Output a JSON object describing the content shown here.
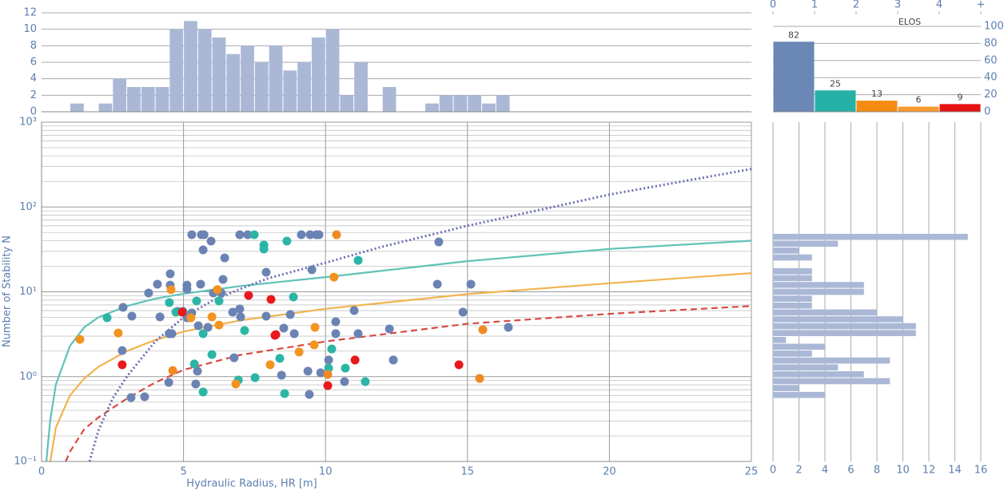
{
  "chart_data": [
    {
      "type": "scatter",
      "xlabel": "Hydraulic Radius, HR [m]",
      "ylabel": "Number of Stability N",
      "xlim": [
        0,
        25
      ],
      "ylim": [
        0.1,
        1000
      ],
      "ylog": true,
      "grid": true,
      "xticks": [
        0,
        5,
        10,
        15,
        20,
        25
      ],
      "yticks": [
        {
          "value": 0.1,
          "label": "10⁻¹"
        },
        {
          "value": 1,
          "label": "10⁰"
        },
        {
          "value": 10,
          "label": "10¹"
        },
        {
          "value": 100,
          "label": "10²"
        },
        {
          "value": 1000,
          "label": "10³"
        }
      ],
      "yminorticks": [
        0.2,
        0.3,
        0.4,
        0.5,
        0.6,
        0.7,
        0.8,
        0.9,
        2,
        3,
        4,
        5,
        6,
        7,
        8,
        9,
        20,
        30,
        40,
        50,
        60,
        70,
        80,
        90,
        200,
        300,
        400,
        500,
        600,
        700,
        800,
        900
      ],
      "series": [
        {
          "color": "#6b83b3",
          "x": [
            5.29,
            5.63,
            5.72,
            6.98,
            7.26,
            9.15,
            9.46,
            9.68,
            9.77,
            13.99,
            5.97,
            5.69,
            6.45,
            9.52,
            7.91,
            5.6,
            6.39,
            4.08,
            4.53,
            4.53,
            5.12,
            5.12,
            3.77,
            6.05,
            6.33,
            6.98,
            7.01,
            2.87,
            3.18,
            4.17,
            4.79,
            5.29,
            5.12,
            5.86,
            5.52,
            8.53,
            7.91,
            8.9,
            10.36,
            10.36,
            11.15,
            12.25,
            11.01,
            13.94,
            15.12,
            14.84,
            16.44,
            2.84,
            4.59,
            4.5,
            5.49,
            5.43,
            4.48,
            3.15,
            3.63,
            6.78,
            8.45,
            9.38,
            9.83,
            10.11,
            10.67,
            9.43,
            12.39,
            5.24,
            4.98,
            8.76,
            6.73
          ],
          "values": [
            47.1,
            47.1,
            47.1,
            47.1,
            47.1,
            47.1,
            47.1,
            47.1,
            47.1,
            38.7,
            39.6,
            31.2,
            25.1,
            18.2,
            17,
            12.3,
            14,
            12.3,
            16.3,
            12,
            12,
            10.8,
            9.68,
            9.68,
            9.68,
            6.28,
            5.06,
            6.55,
            5.16,
            5.06,
            5.88,
            5.63,
            4.94,
            3.81,
            3.98,
            3.73,
            5.16,
            3.21,
            4.44,
            3.21,
            3.21,
            3.65,
            6.01,
            12.3,
            12.3,
            5.75,
            3.81,
            2.03,
            3.21,
            3.21,
            1.16,
            0.818,
            0.855,
            0.566,
            0.578,
            1.67,
            1.04,
            1.16,
            1.11,
            1.57,
            0.873,
            0.618,
            1.57,
            4.94,
            5.88,
            5.4,
            5.75
          ]
        },
        {
          "color": "#2bb5a5",
          "x": [
            2.31,
            4.5,
            5.38,
            5.46,
            6,
            6.25,
            5.69,
            7.15,
            7.49,
            7.83,
            7.83,
            8.64,
            8.87,
            11.15,
            8.39,
            8.56,
            7.52,
            6.93,
            5.69,
            10.22,
            10.11,
            10.7,
            11.4,
            4.73
          ],
          "values": [
            4.94,
            7.46,
            1.41,
            7.8,
            1.82,
            7.8,
            3.21,
            3.5,
            47.1,
            35.6,
            31.9,
            39.6,
            8.69,
            23.5,
            1.64,
            0.631,
            0.973,
            0.912,
            0.659,
            2.12,
            1.26,
            1.26,
            0.873,
            5.75
          ]
        },
        {
          "color": "#f39320",
          "x": [
            1.35,
            2.7,
            4.56,
            5.26,
            6,
            6.25,
            6.19,
            6.84,
            8.05,
            9.63,
            9.6,
            9.07,
            10.3
          ],
          "values": [
            2.75,
            3.27,
            10.6,
            4.94,
            5.06,
            4.06,
            10.6,
            0.818,
            1.38,
            3.81,
            2.37,
            1.95,
            14.9
          ]
        },
        {
          "color": "#ef8a22",
          "x": [
            10.39,
            15.54,
            15.43,
            4.62,
            10.08
          ],
          "values": [
            47.1,
            3.57,
            0.953,
            1.18,
            1.06
          ]
        },
        {
          "color": "#e8191c",
          "x": [
            2.84,
            4.95,
            7.29,
            8.08,
            8.25,
            8.22,
            11.04,
            10.08,
            14.7
          ],
          "values": [
            1.38,
            5.75,
            9.08,
            8.14,
            3.13,
            3.07,
            1.57,
            0.783,
            1.38
          ]
        }
      ],
      "curves": [
        {
          "color": "#5fc2b8",
          "style": "solid",
          "x": [
            0.17,
            0.3,
            0.5,
            1,
            1.5,
            2,
            3,
            4,
            5,
            7,
            10,
            15,
            20,
            25
          ],
          "values": [
            0.1,
            0.3,
            0.8,
            2.3,
            3.8,
            5,
            6.8,
            8.3,
            9.5,
            11.7,
            14.9,
            23,
            32,
            40
          ]
        },
        {
          "color": "#f0b44e",
          "style": "solid",
          "x": [
            0.31,
            0.5,
            1,
            1.5,
            2,
            3,
            4,
            5,
            7,
            10,
            15,
            20,
            25
          ],
          "values": [
            0.1,
            0.25,
            0.6,
            0.95,
            1.3,
            2,
            2.7,
            3.4,
            4.6,
            6.3,
            9.4,
            12.6,
            16.6
          ]
        },
        {
          "color": "#d84a45",
          "style": "dashed",
          "x": [
            0.85,
            1,
            1.5,
            2,
            3,
            4,
            5,
            7,
            10,
            15,
            20,
            25
          ],
          "values": [
            0.1,
            0.13,
            0.24,
            0.33,
            0.55,
            0.85,
            1.2,
            1.8,
            2.6,
            4.2,
            5.5,
            6.8
          ]
        },
        {
          "color": "#6a6fb5",
          "style": "dotted",
          "x": [
            1.69,
            2,
            2.5,
            3,
            4,
            5,
            6,
            7,
            8,
            10,
            12,
            15,
            20,
            25
          ],
          "values": [
            0.1,
            0.23,
            0.55,
            1,
            2.6,
            5,
            7.8,
            10.8,
            14.5,
            22,
            34,
            60,
            140,
            280
          ]
        }
      ]
    },
    {
      "type": "histogram",
      "color": "#aab8d6",
      "xlim": [
        0,
        25
      ],
      "ylim": [
        0,
        12
      ],
      "yticks": [
        0,
        2,
        4,
        6,
        8,
        10,
        12
      ],
      "grid": true,
      "bins": [
        1,
        1.5,
        2,
        2.5,
        3,
        3.5,
        4,
        4.5,
        5,
        5.5,
        6,
        6.5,
        7,
        7.5,
        8,
        8.5,
        9,
        9.5,
        10,
        10.5,
        11,
        11.5,
        12,
        12.5,
        13,
        13.5,
        14,
        14.5,
        15,
        15.5,
        16,
        16.5
      ],
      "values": [
        1,
        0,
        1,
        4,
        3,
        3,
        3,
        10,
        11,
        10,
        9,
        7,
        8,
        6,
        8,
        5,
        6,
        9,
        10,
        2,
        6,
        0,
        3,
        0,
        0,
        1,
        2,
        2,
        2,
        1,
        2
      ]
    },
    {
      "type": "histogram",
      "orientation": "horizontal",
      "color": "#aab8d6",
      "xlim": [
        0,
        16
      ],
      "xticks": [
        0,
        2,
        4,
        6,
        8,
        10,
        12,
        14,
        16
      ],
      "grid": true,
      "ylim": [
        0.1,
        1000
      ],
      "ylog": true,
      "bins": [
        0.555,
        0.668,
        0.805,
        0.971,
        1.17,
        1.41,
        1.7,
        2.05,
        2.47,
        2.97,
        3.58,
        4.32,
        5.2,
        6.27,
        7.55,
        9.1,
        11,
        13.2,
        15.9,
        19.2,
        23.1,
        27.9,
        33.6,
        40.5,
        48.8
      ],
      "values": [
        4,
        2,
        9,
        7,
        5,
        9,
        3,
        4,
        1,
        11,
        11,
        10,
        8,
        3,
        3,
        7,
        7,
        3,
        3,
        0,
        3,
        2,
        5,
        15
      ]
    },
    {
      "type": "bar",
      "xlabel": "ELOS",
      "xlim": [
        0,
        5
      ],
      "xticks": [
        0,
        1,
        2,
        3,
        4,
        {
          "value": 5,
          "label": "+"
        }
      ],
      "ylim": [
        0,
        100
      ],
      "yticks": [
        0,
        20,
        40,
        60,
        80,
        100
      ],
      "grid": true,
      "values": [
        82,
        25,
        13,
        6,
        9
      ],
      "colors": [
        "#6a87b5",
        "#26b1a6",
        "#f58b12",
        "#f79a2e",
        "#e51212"
      ]
    }
  ]
}
